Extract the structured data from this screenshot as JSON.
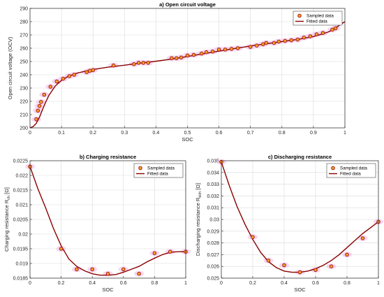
{
  "colors": {
    "marker_edge": "#a51c1c",
    "marker_fill": "#f4a321",
    "fit_line": "#8b0000",
    "noise_band": "#f2b6e8",
    "grid": "#d9d9d9",
    "axes": "#262626"
  },
  "chart_data": [
    {
      "type": "line",
      "title": "a) Open circuit voltage",
      "xlabel": "SOC",
      "ylabel": "Open circuit voltage (OCV)",
      "xlim": [
        0,
        1
      ],
      "ylim": [
        200,
        290
      ],
      "xticks": [
        "0",
        "0.1",
        "0.2",
        "0.3",
        "0.4",
        "0.5",
        "0.6",
        "0.7",
        "0.8",
        "0.9",
        "1"
      ],
      "yticks": [
        "200",
        "210",
        "220",
        "230",
        "240",
        "250",
        "260",
        "270",
        "280",
        "290"
      ],
      "grid": true,
      "legend_position": "top-right",
      "legend": [
        "Sampled data",
        "Fitted data"
      ],
      "series": [
        {
          "name": "Sampled data",
          "style": "markers",
          "x": [
            0.02,
            0.025,
            0.03,
            0.035,
            0.045,
            0.065,
            0.085,
            0.105,
            0.125,
            0.14,
            0.18,
            0.19,
            0.2,
            0.265,
            0.33,
            0.345,
            0.36,
            0.375,
            0.45,
            0.465,
            0.48,
            0.5,
            0.52,
            0.545,
            0.56,
            0.58,
            0.6,
            0.62,
            0.64,
            0.66,
            0.7,
            0.72,
            0.74,
            0.75,
            0.775,
            0.79,
            0.81,
            0.83,
            0.85,
            0.87,
            0.89,
            0.91,
            0.93,
            0.96,
            0.97
          ],
          "y": [
            206.5,
            213,
            216.5,
            219.5,
            225,
            231,
            235,
            237,
            239,
            240,
            242,
            243,
            243.5,
            247,
            248,
            249,
            249,
            249,
            252.5,
            252.5,
            253,
            254.5,
            255,
            256,
            257,
            257.5,
            259,
            259,
            259.5,
            260,
            261,
            262,
            263,
            264,
            264,
            265,
            265.5,
            266,
            266.5,
            268,
            269,
            270.5,
            271.5,
            274,
            275
          ]
        },
        {
          "name": "Fitted data",
          "style": "line",
          "x": [
            0,
            0.01,
            0.02,
            0.03,
            0.04,
            0.05,
            0.06,
            0.08,
            0.1,
            0.12,
            0.15,
            0.2,
            0.25,
            0.3,
            0.35,
            0.4,
            0.45,
            0.5,
            0.55,
            0.6,
            0.65,
            0.7,
            0.75,
            0.8,
            0.85,
            0.9,
            0.93,
            0.95,
            0.97,
            0.99,
            1
          ],
          "y": [
            200,
            201,
            203.5,
            208,
            214,
            219.5,
            224.5,
            231.5,
            235.8,
            238.7,
            241.3,
            244,
            245.8,
            247.2,
            248.8,
            250.2,
            251.8,
            253.8,
            255.8,
            257.8,
            259.8,
            261.7,
            263.3,
            265,
            266.6,
            268.8,
            270.8,
            272.5,
            275.2,
            278.5,
            280
          ]
        }
      ]
    },
    {
      "type": "line",
      "title": "b) Charging resistance",
      "xlabel": "SOC",
      "ylabel": "Charging resistance R",
      "ylabel_subscript": "ch",
      "ylabel_unit": "[Ω]",
      "xlim": [
        0,
        1
      ],
      "ylim": [
        0.0185,
        0.0225
      ],
      "xticks": [
        "0",
        "0.2",
        "0.4",
        "0.6",
        "0.8",
        "1"
      ],
      "yticks": [
        "0.0185",
        "0.019",
        "0.0195",
        "0.02",
        "0.0205",
        "0.021",
        "0.0215",
        "0.022",
        "0.0225"
      ],
      "grid": true,
      "legend_position": "top-right",
      "legend": [
        "Sampled data",
        "Fitted data"
      ],
      "series": [
        {
          "name": "Sampled data",
          "style": "markers",
          "x": [
            0,
            0.2,
            0.3,
            0.4,
            0.5,
            0.6,
            0.7,
            0.8,
            0.9,
            1
          ],
          "y": [
            0.0223,
            0.0195,
            0.0188,
            0.0188,
            0.01865,
            0.0188,
            0.01865,
            0.01935,
            0.0194,
            0.0194
          ]
        },
        {
          "name": "Fitted data",
          "style": "line",
          "x": [
            0,
            0.05,
            0.1,
            0.15,
            0.2,
            0.25,
            0.3,
            0.35,
            0.4,
            0.45,
            0.5,
            0.55,
            0.6,
            0.65,
            0.7,
            0.75,
            0.8,
            0.85,
            0.9,
            0.95,
            1
          ],
          "y": [
            0.0223,
            0.02155,
            0.0209,
            0.0202,
            0.0196,
            0.01915,
            0.0189,
            0.01875,
            0.01865,
            0.0186,
            0.0186,
            0.01862,
            0.0187,
            0.0188,
            0.0189,
            0.01905,
            0.01918,
            0.0193,
            0.01938,
            0.0194,
            0.0194
          ]
        }
      ]
    },
    {
      "type": "line",
      "title": "c) Discharging resistance",
      "xlabel": "SOC",
      "ylabel": "Discharging resistance R",
      "ylabel_subscript": "dch",
      "ylabel_unit": "[Ω]",
      "xlim": [
        0,
        1
      ],
      "ylim": [
        0.025,
        0.035
      ],
      "xticks": [
        "0",
        "0.2",
        "0.4",
        "0.6",
        "0.8",
        "1"
      ],
      "yticks": [
        "0.025",
        "0.026",
        "0.027",
        "0.028",
        "0.029",
        "0.03",
        "0.031",
        "0.032",
        "0.033",
        "0.034",
        "0.035"
      ],
      "grid": true,
      "legend_position": "top-right",
      "legend": [
        "Sampled data",
        "Fitted data"
      ],
      "series": [
        {
          "name": "Sampled data",
          "style": "markers",
          "x": [
            0,
            0.2,
            0.3,
            0.4,
            0.5,
            0.6,
            0.7,
            0.8,
            0.9,
            1
          ],
          "y": [
            0.0349,
            0.0285,
            0.0265,
            0.0261,
            0.0255,
            0.0257,
            0.026,
            0.027,
            0.0284,
            0.0298
          ]
        },
        {
          "name": "Fitted data",
          "style": "line",
          "x": [
            0,
            0.05,
            0.1,
            0.15,
            0.2,
            0.25,
            0.3,
            0.35,
            0.4,
            0.45,
            0.5,
            0.55,
            0.6,
            0.65,
            0.7,
            0.75,
            0.8,
            0.85,
            0.9,
            0.95,
            1
          ],
          "y": [
            0.0349,
            0.0329,
            0.0311,
            0.0296,
            0.0283,
            0.0272,
            0.0264,
            0.0259,
            0.0256,
            0.0255,
            0.0255,
            0.0256,
            0.0258,
            0.0261,
            0.0265,
            0.027,
            0.0276,
            0.0282,
            0.0288,
            0.0293,
            0.0298
          ]
        }
      ]
    }
  ]
}
